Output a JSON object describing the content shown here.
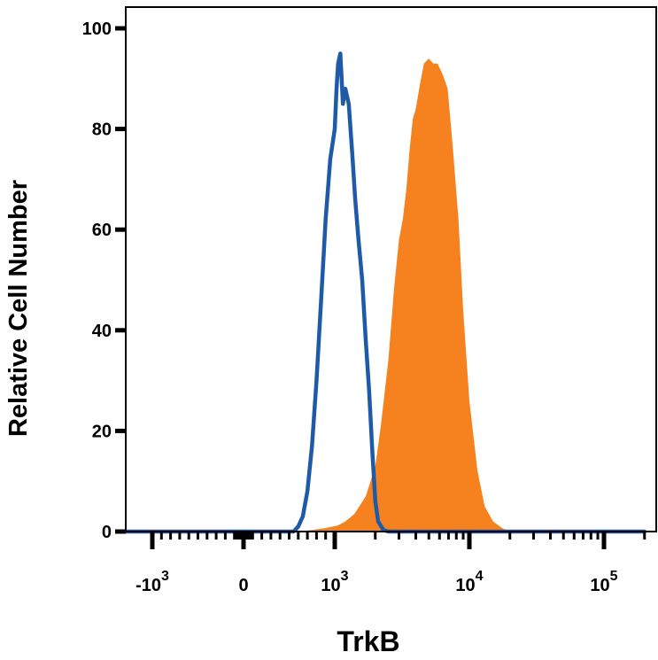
{
  "chart_data": {
    "type": "area",
    "title": "",
    "xlabel": "TrkB",
    "ylabel": "Relative Cell Number",
    "x_scale": "biexponential",
    "xlim": [
      -2000,
      200000
    ],
    "ylim": [
      0,
      100
    ],
    "y_ticks": [
      {
        "value": 0,
        "label": "0"
      },
      {
        "value": 20,
        "label": "20"
      },
      {
        "value": 40,
        "label": "40"
      },
      {
        "value": 60,
        "label": "60"
      },
      {
        "value": 80,
        "label": "80"
      },
      {
        "value": 100,
        "label": "100"
      }
    ],
    "x_ticks": [
      {
        "value": -1000,
        "base": "-10",
        "exp": "3"
      },
      {
        "value": 0,
        "base": "0",
        "exp": ""
      },
      {
        "value": 1000,
        "base": "10",
        "exp": "3"
      },
      {
        "value": 10000,
        "base": "10",
        "exp": "4"
      },
      {
        "value": 100000,
        "base": "10",
        "exp": "5"
      }
    ],
    "grid": false,
    "series": [
      {
        "style": "filled",
        "color": "#F5821F",
        "x": [
          -2000,
          0,
          600,
          750,
          900,
          1050,
          1200,
          1400,
          1700,
          2000,
          2200,
          2500,
          2750,
          3000,
          3200,
          3400,
          3600,
          3800,
          4000,
          4300,
          4600,
          5000,
          5400,
          5800,
          6300,
          6900,
          7500,
          8300,
          9000,
          10000,
          11500,
          13000,
          15000,
          18000,
          22000,
          200000
        ],
        "y": [
          0,
          0,
          0,
          0.3,
          0.7,
          1.2,
          2,
          3.5,
          7,
          13,
          21,
          34,
          48,
          58,
          62,
          68,
          76,
          82,
          84,
          89,
          93,
          94,
          93,
          93,
          91,
          88,
          77,
          62,
          44,
          26,
          12,
          5,
          2,
          0.5,
          0,
          0
        ]
      },
      {
        "style": "outline",
        "color": "#1F5AA8",
        "x": [
          -2000,
          0,
          550,
          600,
          650,
          700,
          750,
          800,
          850,
          900,
          950,
          1000,
          1030,
          1060,
          1100,
          1150,
          1200,
          1270,
          1350,
          1420,
          1500,
          1600,
          1700,
          1800,
          1850,
          1900,
          1950,
          2000,
          2100,
          2300,
          2500,
          200000
        ],
        "y": [
          0,
          0,
          0,
          1,
          3,
          8,
          17,
          30,
          46,
          62,
          74,
          80,
          88,
          93,
          95,
          85,
          88,
          85,
          75,
          66,
          58,
          50,
          38,
          28,
          22,
          16,
          11,
          6,
          2,
          0.3,
          0,
          0
        ]
      }
    ]
  }
}
